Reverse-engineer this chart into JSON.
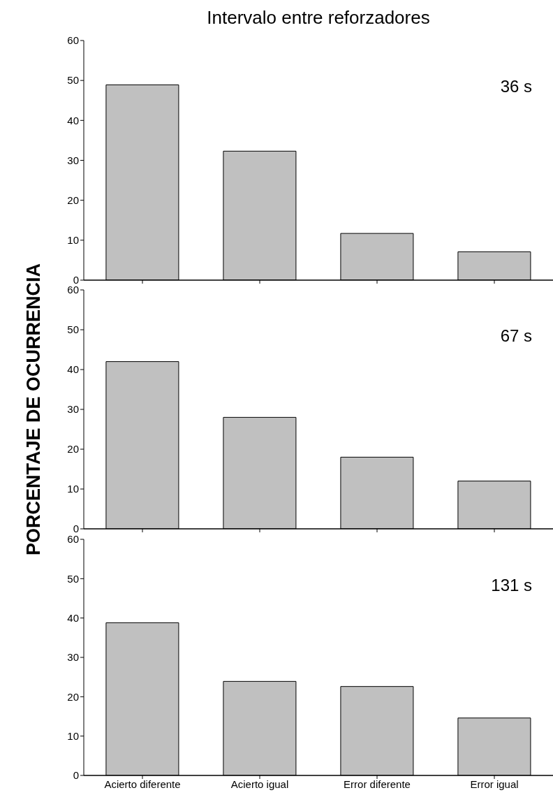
{
  "chart_data": [
    {
      "type": "bar",
      "title": "Intervalo entre reforzadores",
      "categories": [
        null,
        null,
        null,
        null
      ],
      "values": [
        48.9,
        32.3,
        11.7,
        7.1
      ],
      "color": "#c0c0c0",
      "ylim": [
        0,
        60
      ],
      "yticks": [
        0,
        10,
        20,
        30,
        40,
        50,
        60
      ],
      "annotations": [
        "36 s"
      ],
      "tick_labels": "y"
    },
    {
      "type": "bar",
      "ylabel": "PORCENTAJE DE OCURRENCIA",
      "categories": [
        null,
        null,
        null,
        null
      ],
      "values": [
        42,
        28,
        18,
        12
      ],
      "color": "#c0c0c0",
      "ylim": [
        0,
        60
      ],
      "yticks": [
        0,
        10,
        20,
        30,
        40,
        50,
        60
      ],
      "annotations": [
        "67 s"
      ],
      "tick_labels": "y"
    },
    {
      "type": "bar",
      "categories": [
        "Acierto diferente",
        "Acierto igual",
        "Error diferente",
        "Error igual"
      ],
      "values": [
        38.8,
        23.9,
        22.6,
        14.6
      ],
      "color": "#c0c0c0",
      "ylim": [
        0,
        60
      ],
      "yticks": [
        0,
        10,
        20,
        30,
        40,
        50,
        60
      ],
      "annotations": [
        "131 s"
      ]
    }
  ]
}
